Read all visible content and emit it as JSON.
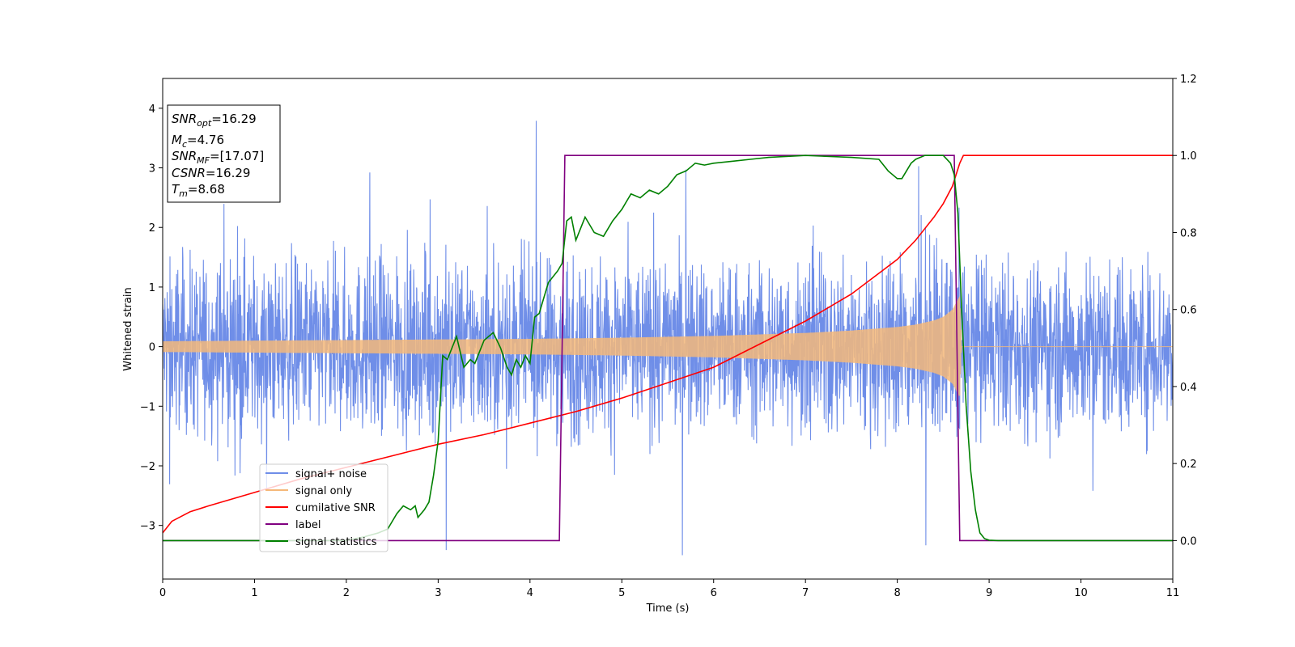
{
  "chart_data": {
    "type": "line",
    "title": "",
    "xlabel": "Time (s)",
    "ylabel": "Whitened strain",
    "xlim": [
      0,
      11
    ],
    "ylim_left": [
      -3.9,
      4.5
    ],
    "ylim_right": [
      -0.1,
      1.2
    ],
    "x_ticks": [
      "0",
      "1",
      "2",
      "3",
      "4",
      "5",
      "6",
      "7",
      "8",
      "9",
      "10",
      "11"
    ],
    "y_left_ticks": [
      "−3",
      "−2",
      "−1",
      "0",
      "1",
      "2",
      "3",
      "4"
    ],
    "y_right_ticks": [
      "0.0",
      "0.2",
      "0.4",
      "0.6",
      "0.8",
      "1.0",
      "1.2"
    ],
    "grid": false,
    "legend_position": "lower-left",
    "annotation": {
      "lines": [
        {
          "sym": "SNR",
          "sub": "opt",
          "value": "=16.29"
        },
        {
          "sym": "M",
          "sub": "c",
          "value": "=4.76"
        },
        {
          "sym": "SNR",
          "sub": "MF",
          "value": "=[17.07]"
        },
        {
          "sym": "CSNR",
          "sub": "",
          "value": "=16.29"
        },
        {
          "sym": "T",
          "sub": "m",
          "value": "=8.68"
        }
      ]
    },
    "series": [
      {
        "name": "signal+ noise",
        "axis": "left",
        "color": "#6f8ee8",
        "description_values": {
          "noise_std_approx": 0.9,
          "max_spike": 4.17,
          "min_spike": -3.5,
          "signal_amplitude_at_merger": 0.85
        }
      },
      {
        "name": "signal only",
        "axis": "left",
        "color": "#f5b87a",
        "envelope": {
          "x": [
            0,
            1,
            2,
            3,
            4,
            5,
            6,
            7,
            7.5,
            8,
            8.2,
            8.4,
            8.5,
            8.6,
            8.68,
            8.7,
            11
          ],
          "amplitude": [
            0.09,
            0.1,
            0.11,
            0.12,
            0.13,
            0.15,
            0.18,
            0.23,
            0.27,
            0.33,
            0.37,
            0.44,
            0.5,
            0.62,
            0.85,
            0.0,
            0.0
          ]
        }
      },
      {
        "name": "cumilative SNR",
        "axis": "right",
        "color": "#ff0000",
        "x": [
          0,
          0.1,
          0.3,
          0.5,
          1,
          1.5,
          2,
          2.5,
          3,
          3.5,
          4,
          4.5,
          5,
          5.5,
          6,
          6.5,
          7,
          7.5,
          8,
          8.2,
          8.4,
          8.5,
          8.6,
          8.68,
          8.72,
          11
        ],
        "values": [
          0.02,
          0.05,
          0.075,
          0.09,
          0.125,
          0.16,
          0.19,
          0.22,
          0.25,
          0.275,
          0.305,
          0.335,
          0.37,
          0.41,
          0.45,
          0.51,
          0.57,
          0.64,
          0.73,
          0.78,
          0.84,
          0.875,
          0.92,
          0.98,
          1.0,
          1.0
        ]
      },
      {
        "name": "label",
        "axis": "right",
        "color": "#800080",
        "x": [
          0,
          4.32,
          4.38,
          8.62,
          8.68,
          11
        ],
        "values": [
          0.0,
          0.0,
          1.0,
          1.0,
          0.0,
          0.0
        ]
      },
      {
        "name": "signal statistics",
        "axis": "right",
        "color": "#008000",
        "x": [
          0,
          2.0,
          2.2,
          2.35,
          2.45,
          2.55,
          2.62,
          2.7,
          2.75,
          2.78,
          2.85,
          2.9,
          2.95,
          3.0,
          3.05,
          3.1,
          3.2,
          3.28,
          3.35,
          3.4,
          3.45,
          3.5,
          3.6,
          3.68,
          3.75,
          3.8,
          3.85,
          3.9,
          3.95,
          4.0,
          4.05,
          4.1,
          4.2,
          4.3,
          4.35,
          4.4,
          4.45,
          4.5,
          4.6,
          4.7,
          4.8,
          4.9,
          5.0,
          5.05,
          5.1,
          5.2,
          5.3,
          5.4,
          5.5,
          5.6,
          5.7,
          5.8,
          5.9,
          6.0,
          6.2,
          6.4,
          6.6,
          7.0,
          7.5,
          7.8,
          7.9,
          8.0,
          8.05,
          8.1,
          8.15,
          8.2,
          8.3,
          8.4,
          8.5,
          8.58,
          8.62,
          8.66,
          8.7,
          8.75,
          8.8,
          8.85,
          8.9,
          8.95,
          9.0,
          9.1,
          11
        ],
        "values": [
          0.0,
          0.0,
          0.01,
          0.02,
          0.03,
          0.07,
          0.09,
          0.08,
          0.09,
          0.06,
          0.08,
          0.1,
          0.17,
          0.26,
          0.48,
          0.47,
          0.53,
          0.45,
          0.47,
          0.46,
          0.49,
          0.52,
          0.54,
          0.5,
          0.45,
          0.43,
          0.47,
          0.45,
          0.48,
          0.46,
          0.58,
          0.59,
          0.67,
          0.7,
          0.72,
          0.83,
          0.84,
          0.78,
          0.84,
          0.8,
          0.79,
          0.83,
          0.86,
          0.88,
          0.9,
          0.89,
          0.91,
          0.9,
          0.92,
          0.95,
          0.96,
          0.98,
          0.975,
          0.98,
          0.985,
          0.99,
          0.995,
          1.0,
          0.995,
          0.99,
          0.96,
          0.94,
          0.94,
          0.96,
          0.98,
          0.99,
          1.0,
          1.0,
          1.0,
          0.98,
          0.95,
          0.85,
          0.6,
          0.35,
          0.18,
          0.08,
          0.02,
          0.005,
          0.001,
          0.0,
          0.0
        ]
      }
    ]
  }
}
